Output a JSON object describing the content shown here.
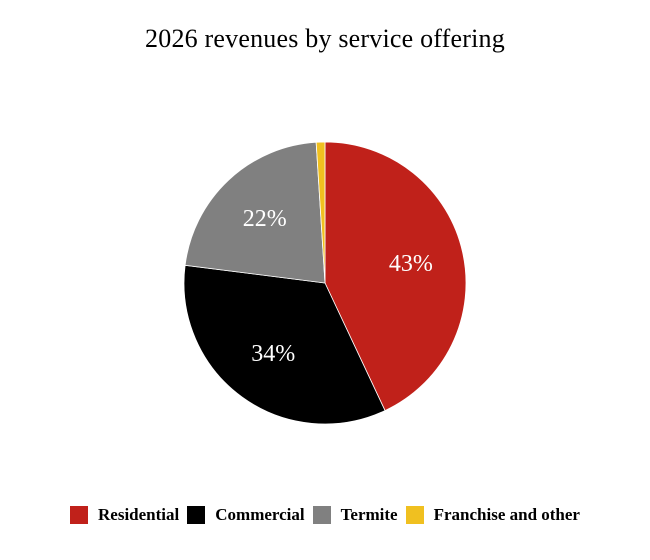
{
  "chart_data": {
    "type": "pie",
    "title": "2026 revenues by service offering",
    "slices": [
      {
        "label": "Residential",
        "value": 43,
        "value_label": "43%",
        "color": "#c0211a"
      },
      {
        "label": "Commercial",
        "value": 34,
        "value_label": "34%",
        "color": "#000000"
      },
      {
        "label": "Termite",
        "value": 22,
        "value_label": "22%",
        "color": "#808080"
      },
      {
        "label": "Franchise and other",
        "value": 1,
        "value_label": "",
        "color": "#f0c020"
      }
    ],
    "start_angle_deg": 0,
    "direction": "clockwise",
    "data_label_color": "#ffffff",
    "legend_position": "bottom"
  }
}
